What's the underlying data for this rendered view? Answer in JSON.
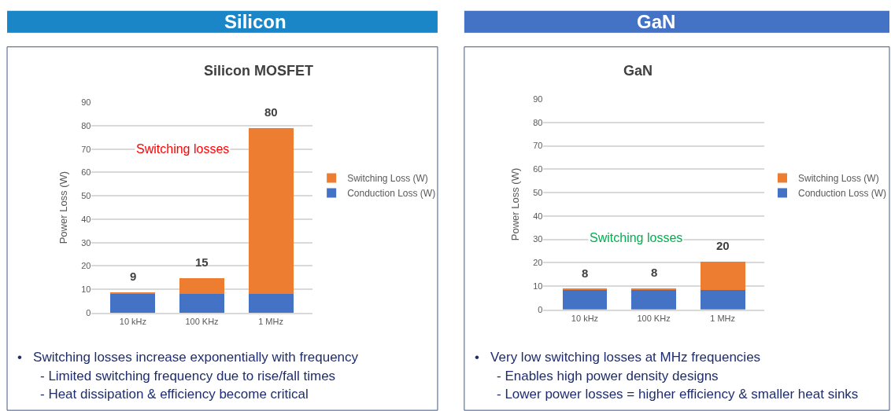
{
  "chart_data": [
    {
      "type": "bar",
      "title": "Silicon",
      "subtitle": "Silicon MOSFET",
      "ylabel": "Power Loss (W)",
      "categories": [
        "10 kHz",
        "100 KHz",
        "1 MHz"
      ],
      "series": [
        {
          "name": "Conduction Loss (W)",
          "color": "#4472c4",
          "values": [
            8,
            8,
            8
          ]
        },
        {
          "name": "Switching Loss (W)",
          "color": "#ed7d31",
          "values": [
            0.6,
            6.8,
            71.1
          ]
        }
      ],
      "stacked": true,
      "totals": [
        "9",
        "15",
        "80"
      ],
      "ylim": [
        0,
        90
      ],
      "yticks": [
        0,
        10,
        20,
        30,
        40,
        50,
        60,
        70,
        80,
        90
      ],
      "grid": "y",
      "legend": "right",
      "annotations": [
        "Switching losses",
        "•   Switching losses increase exponentially with frequency",
        "- Limited switching frequency due to rise/fall times",
        "- Heat dissipation & efficiency become critical"
      ]
    },
    {
      "type": "bar",
      "title": "GaN",
      "subtitle": "GaN",
      "ylabel": "Power Loss (W)",
      "categories": [
        "10 kHz",
        "100 KHz",
        "1 MHz"
      ],
      "series": [
        {
          "name": "Conduction Loss (W)",
          "color": "#4472c4",
          "values": [
            8.5,
            8.5,
            8.5
          ]
        },
        {
          "name": "Switching Loss (W)",
          "color": "#ed7d31",
          "values": [
            0.2,
            0.5,
            12
          ]
        }
      ],
      "stacked": true,
      "totals": [
        "8",
        "8",
        "20"
      ],
      "ylim": [
        0,
        90
      ],
      "yticks": [
        0,
        10,
        20,
        30,
        40,
        50,
        60,
        70,
        80,
        90
      ],
      "grid": "y",
      "legend": "right",
      "annotations": [
        "Switching losses",
        "•   Very low switching losses at MHz frequencies",
        "- Enables high power density designs",
        "- Lower power losses = higher efficiency & smaller heat sinks"
      ]
    }
  ]
}
